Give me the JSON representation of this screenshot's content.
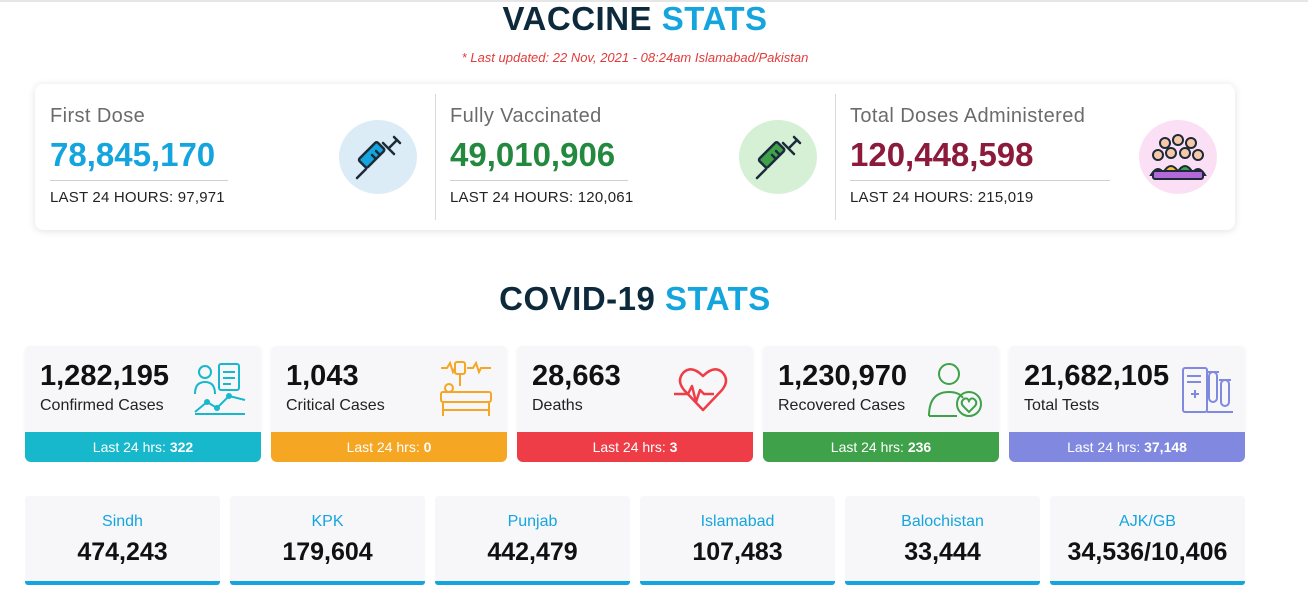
{
  "vaccine": {
    "heading_dark": "VACCINE",
    "heading_blue": "STATS",
    "updated": "* Last updated: 22 Nov, 2021 - 08:24am Islamabad/Pakistan",
    "items": [
      {
        "label": "First Dose",
        "value": "78,845,170",
        "last24": "LAST 24 HOURS: 97,971",
        "color": "#15a5de",
        "icon": "syringe-icon"
      },
      {
        "label": "Fully Vaccinated",
        "value": "49,010,906",
        "last24": "LAST 24 HOURS: 120,061",
        "color": "#23893f",
        "icon": "syringe-icon"
      },
      {
        "label": "Total Doses Administered",
        "value": "120,448,598",
        "last24": "LAST 24 HOURS: 215,019",
        "color": "#8b1a3b",
        "icon": "people-group-icon"
      }
    ]
  },
  "covid": {
    "heading_dark": "COVID-19",
    "heading_blue": "STATS",
    "bar_prefix": "Last 24 hrs:",
    "cards": [
      {
        "value": "1,282,195",
        "label": "Confirmed Cases",
        "last24": "322",
        "color": "#17b8cc",
        "icon": "patient-chart-icon"
      },
      {
        "value": "1,043",
        "label": "Critical Cases",
        "last24": "0",
        "color": "#f5a623",
        "icon": "hospital-bed-icon"
      },
      {
        "value": "28,663",
        "label": "Deaths",
        "last24": "3",
        "color": "#ee3d47",
        "icon": "heartbeat-icon"
      },
      {
        "value": "1,230,970",
        "label": "Recovered Cases",
        "last24": "236",
        "color": "#3fa14a",
        "icon": "recovered-person-icon"
      },
      {
        "value": "21,682,105",
        "label": "Total Tests",
        "last24": "37,148",
        "color": "#8088e0",
        "icon": "test-tubes-icon"
      }
    ]
  },
  "provinces": [
    {
      "name": "Sindh",
      "value": "474,243"
    },
    {
      "name": "KPK",
      "value": "179,604"
    },
    {
      "name": "Punjab",
      "value": "442,479"
    },
    {
      "name": "Islamabad",
      "value": "107,483"
    },
    {
      "name": "Balochistan",
      "value": "33,444"
    },
    {
      "name": "AJK/GB",
      "value": "34,536/10,406"
    }
  ]
}
